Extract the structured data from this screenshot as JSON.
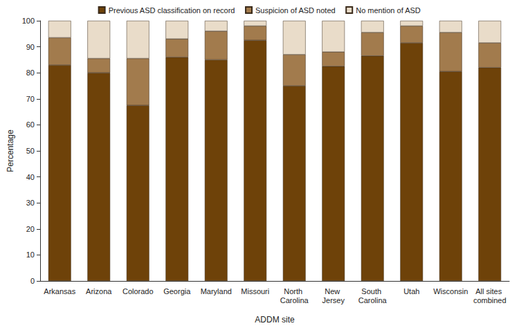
{
  "chart_data": {
    "type": "bar",
    "stacked": true,
    "grid": false,
    "legend": "top",
    "x_label": "ADDM site",
    "y_label": "Percentage",
    "categories": [
      "Arkansas",
      "Arizona",
      "Colorado",
      "Georgia",
      "Maryland",
      "Missouri",
      "North Carolina",
      "New Jersey",
      "South Carolina",
      "Utah",
      "Wisconsin",
      "All sites combined"
    ],
    "series": [
      {
        "name": "Previous ASD classification on record",
        "color": "#6e4209",
        "values": [
          83,
          80,
          67.5,
          86,
          85,
          92.5,
          75,
          82.5,
          86.5,
          91.5,
          80.5,
          82
        ]
      },
      {
        "name": "Suspicion of ASD noted",
        "color": "#a27b4d",
        "values": [
          10.5,
          5.5,
          18,
          7,
          11,
          5.5,
          12,
          5.5,
          9,
          6.5,
          15,
          9.5
        ]
      },
      {
        "name": "No mention of ASD",
        "color": "#e9dcc9",
        "values": [
          6.5,
          14.5,
          14.5,
          7,
          4,
          2,
          13,
          12,
          4.5,
          2,
          4.5,
          8.5
        ]
      }
    ],
    "ylim": [
      0,
      100
    ],
    "yticks": [
      0,
      10,
      20,
      30,
      40,
      50,
      60,
      70,
      80,
      90,
      100
    ]
  }
}
